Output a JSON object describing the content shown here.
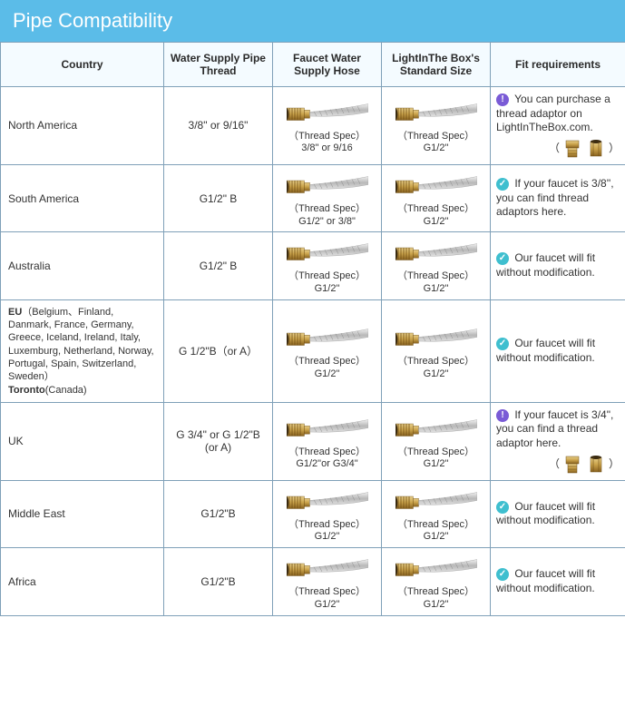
{
  "title": "Pipe Compatibility",
  "columns": {
    "country": "Country",
    "thread": "Water Supply Pipe Thread",
    "hose": "Faucet Water Supply Hose",
    "std": "LightInThe Box's Standard Size",
    "fit": "Fit requirements"
  },
  "spec_prefix": "（Thread Spec）",
  "rows": [
    {
      "country": "North America",
      "thread": "3/8\" or 9/16\"",
      "hose_spec": "3/8\" or 9/16",
      "std_spec": "G1/2\"",
      "fit_icon": "info",
      "fit_text": "You can purchase a thread adaptor on LightInTheBox.com.",
      "show_adaptor": true
    },
    {
      "country": "South America",
      "thread": "G1/2\" B",
      "hose_spec": "G1/2\" or 3/8\"",
      "std_spec": "G1/2\"",
      "fit_icon": "check",
      "fit_text": "If your faucet is 3/8'', you can find thread adaptors here.",
      "show_adaptor": false
    },
    {
      "country": "Australia",
      "thread": "G1/2\" B",
      "hose_spec": "G1/2\"",
      "std_spec": "G1/2\"",
      "fit_icon": "check",
      "fit_text": "Our faucet will fit without modification.",
      "show_adaptor": false
    },
    {
      "country_html": "<b>EU</b>（Belgium、Finland, Danmark, France, Germany, Greece, Iceland, Ireland, Italy, Luxemburg, Netherland, Norway, Portugal, Spain, Switzerland, Sweden）<br><b>Toronto</b>(Canada)",
      "thread": "G 1/2\"B（or A）",
      "hose_spec": "G1/2\"",
      "std_spec": "G1/2\"",
      "fit_icon": "check",
      "fit_text": "Our faucet will fit without modification.",
      "show_adaptor": false,
      "is_eu": true
    },
    {
      "country": "UK",
      "thread": "G 3/4\" or G 1/2\"B (or A)",
      "hose_spec": "G1/2\"or G3/4\"",
      "std_spec": "G1/2\"",
      "fit_icon": "info",
      "fit_text": "If your faucet is 3/4\", you can find a thread adaptor here.",
      "show_adaptor": true
    },
    {
      "country": "Middle East",
      "thread": "G1/2\"B",
      "hose_spec": "G1/2\"",
      "std_spec": "G1/2\"",
      "fit_icon": "check",
      "fit_text": "Our faucet will fit without modification.",
      "show_adaptor": false
    },
    {
      "country": "Africa",
      "thread": "G1/2\"B",
      "hose_spec": "G1/2\"",
      "std_spec": "G1/2\"",
      "fit_icon": "check",
      "fit_text": "Our faucet will fit without modification.",
      "show_adaptor": false
    }
  ],
  "colors": {
    "header_bg": "#5bbce8",
    "border": "#7fa0b8",
    "th_bg": "#f4fbff",
    "info_icon": "#7a5bd6",
    "check_icon": "#3fbfcf",
    "brass1": "#c9a24a",
    "brass2": "#8a6320",
    "braid": "#d0d0d0"
  }
}
